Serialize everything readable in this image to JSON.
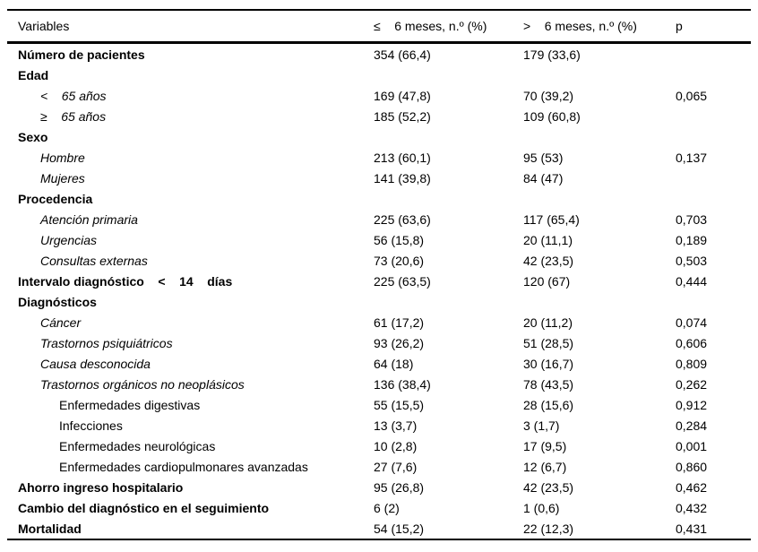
{
  "table": {
    "header": {
      "variables": "Variables",
      "le6": "≤    6 meses, n.º (%)",
      "gt6": ">    6 meses, n.º (%)",
      "p": "p"
    },
    "rows": [
      {
        "label": "Número de pacientes",
        "style": "bold",
        "indent": 0,
        "le6": "354 (66,4)",
        "gt6": "179 (33,6)",
        "p": ""
      },
      {
        "label": "Edad",
        "style": "bold",
        "indent": 0,
        "le6": "",
        "gt6": "",
        "p": ""
      },
      {
        "label": "<    65 años",
        "style": "italic",
        "indent": 1,
        "le6": "169 (47,8)",
        "gt6": "70 (39,2)",
        "p": "0,065"
      },
      {
        "label": "≥    65 años",
        "style": "italic",
        "indent": 1,
        "le6": "185 (52,2)",
        "gt6": "109 (60,8)",
        "p": ""
      },
      {
        "label": "Sexo",
        "style": "bold",
        "indent": 0,
        "le6": "",
        "gt6": "",
        "p": ""
      },
      {
        "label": "Hombre",
        "style": "italic",
        "indent": 1,
        "le6": "213 (60,1)",
        "gt6": "95 (53)",
        "p": "0,137"
      },
      {
        "label": "Mujeres",
        "style": "italic",
        "indent": 1,
        "le6": "141 (39,8)",
        "gt6": "84 (47)",
        "p": ""
      },
      {
        "label": "Procedencia",
        "style": "bold",
        "indent": 0,
        "le6": "",
        "gt6": "",
        "p": ""
      },
      {
        "label": "Atención primaria",
        "style": "italic",
        "indent": 1,
        "le6": "225 (63,6)",
        "gt6": "117 (65,4)",
        "p": "0,703"
      },
      {
        "label": "Urgencias",
        "style": "italic",
        "indent": 1,
        "le6": "56 (15,8)",
        "gt6": "20 (11,1)",
        "p": "0,189"
      },
      {
        "label": "Consultas externas",
        "style": "italic",
        "indent": 1,
        "le6": "73 (20,6)",
        "gt6": "42 (23,5)",
        "p": "0,503"
      },
      {
        "label": "Intervalo diagnóstico    <    14    días",
        "style": "bold",
        "indent": 0,
        "le6": "225 (63,5)",
        "gt6": "120 (67)",
        "p": "0,444"
      },
      {
        "label": "Diagnósticos",
        "style": "bold",
        "indent": 0,
        "le6": "",
        "gt6": "",
        "p": ""
      },
      {
        "label": "Cáncer",
        "style": "italic",
        "indent": 1,
        "le6": "61 (17,2)",
        "gt6": "20 (11,2)",
        "p": "0,074"
      },
      {
        "label": "Trastornos psiquiátricos",
        "style": "italic",
        "indent": 1,
        "le6": "93 (26,2)",
        "gt6": "51 (28,5)",
        "p": "0,606"
      },
      {
        "label": "Causa desconocida",
        "style": "italic",
        "indent": 1,
        "le6": "64 (18)",
        "gt6": "30 (16,7)",
        "p": "0,809"
      },
      {
        "label": "Trastornos orgánicos no neoplásicos",
        "style": "italic",
        "indent": 1,
        "le6": "136 (38,4)",
        "gt6": "78 (43,5)",
        "p": "0,262"
      },
      {
        "label": "Enfermedades digestivas",
        "style": "regular",
        "indent": 2,
        "le6": "55 (15,5)",
        "gt6": "28 (15,6)",
        "p": "0,912"
      },
      {
        "label": "Infecciones",
        "style": "regular",
        "indent": 2,
        "le6": "13 (3,7)",
        "gt6": "3 (1,7)",
        "p": "0,284"
      },
      {
        "label": "Enfermedades neurológicas",
        "style": "regular",
        "indent": 2,
        "le6": "10 (2,8)",
        "gt6": "17 (9,5)",
        "p": "0,001"
      },
      {
        "label": "Enfermedades cardiopulmonares avanzadas",
        "style": "regular",
        "indent": 2,
        "le6": "27 (7,6)",
        "gt6": "12 (6,7)",
        "p": "0,860"
      },
      {
        "label": "Ahorro ingreso hospitalario",
        "style": "bold",
        "indent": 0,
        "le6": "95 (26,8)",
        "gt6": "42 (23,5)",
        "p": "0,462"
      },
      {
        "label": "Cambio del diagnóstico en el seguimiento",
        "style": "bold",
        "indent": 0,
        "le6": "6 (2)",
        "gt6": "1 (0,6)",
        "p": "0,432"
      },
      {
        "label": "Mortalidad",
        "style": "bold",
        "indent": 0,
        "le6": "54 (15,2)",
        "gt6": "22 (12,3)",
        "p": "0,431"
      }
    ]
  }
}
